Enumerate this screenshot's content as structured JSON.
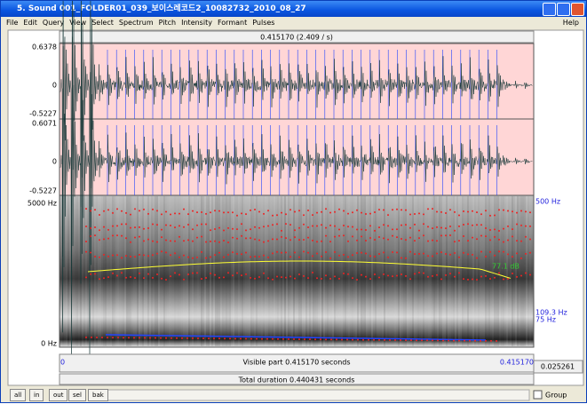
{
  "window": {
    "title": "5. Sound 001_FOLDER01_039_보이스레코드2_10082732_2010_08_27"
  },
  "menu": {
    "items": [
      "File",
      "Edit",
      "Query",
      "View",
      "Select",
      "Spectrum",
      "Pitch",
      "Intensity",
      "Formant",
      "Pulses"
    ],
    "help": "Help"
  },
  "editor": {
    "cursor_label": "0.415170 (2.409 / s)",
    "channel1": {
      "max": "0.6378",
      "zero": "0",
      "min": "-0.5227"
    },
    "channel2": {
      "max": "0.6071",
      "zero": "0",
      "min": "-0.5227"
    },
    "spectrogram": {
      "top": "5000 Hz",
      "bottom": "0 Hz",
      "right_top": "500 Hz",
      "intensity": "77.1 dB",
      "pitch": "109.3 Hz",
      "pitch_floor": "75 Hz"
    },
    "time": {
      "start": "0",
      "visible": "Visible part 0.415170 seconds",
      "end": "0.415170",
      "right": "0.025261",
      "total": "Total duration 0.440431 seconds"
    }
  },
  "buttons": [
    "all",
    "in",
    "out",
    "sel",
    "bak"
  ],
  "group": "Group"
}
